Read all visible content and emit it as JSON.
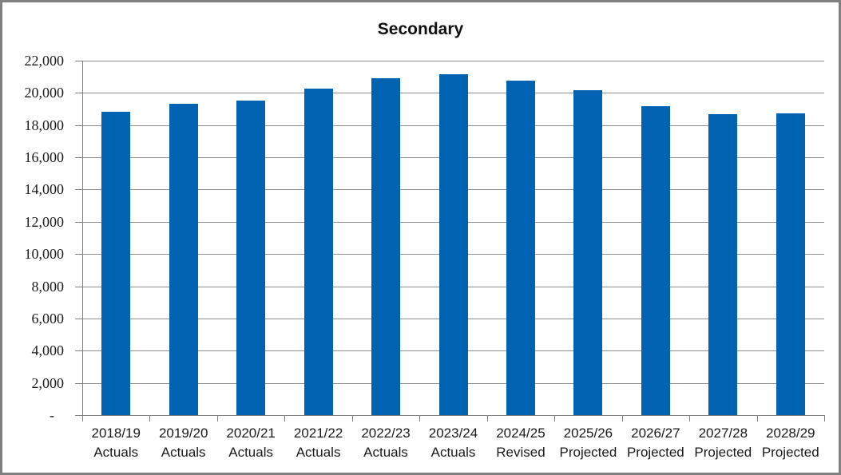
{
  "frame": {
    "background": "#ffffff",
    "border_color": "#808080"
  },
  "chart_data": {
    "type": "bar",
    "title": "Secondary",
    "categories": [
      "2018/19 Actuals",
      "2019/20 Actuals",
      "2020/21 Actuals",
      "2021/22 Actuals",
      "2022/23 Actuals",
      "2023/24 Actuals",
      "2024/25 Revised",
      "2025/26 Projected",
      "2026/27 Projected",
      "2027/28 Projected",
      "2028/29 Projected"
    ],
    "values": [
      18850,
      19300,
      19500,
      20250,
      20900,
      21150,
      20750,
      20150,
      19200,
      18700,
      18750
    ],
    "xlabel": "",
    "ylabel": "",
    "ylim": [
      0,
      22000
    ],
    "ytick_interval": 2000,
    "ytick_labels": [
      "-",
      "2,000",
      "4,000",
      "6,000",
      "8,000",
      "10,000",
      "12,000",
      "14,000",
      "16,000",
      "18,000",
      "20,000",
      "22,000"
    ],
    "grid": true,
    "legend_position": "none",
    "bar_color": "#0063B1",
    "gridline_color": "#8E8E8E",
    "axis_color": "#7F7F7F",
    "text_color": "#1A1A1A",
    "title_color": "#111111"
  }
}
